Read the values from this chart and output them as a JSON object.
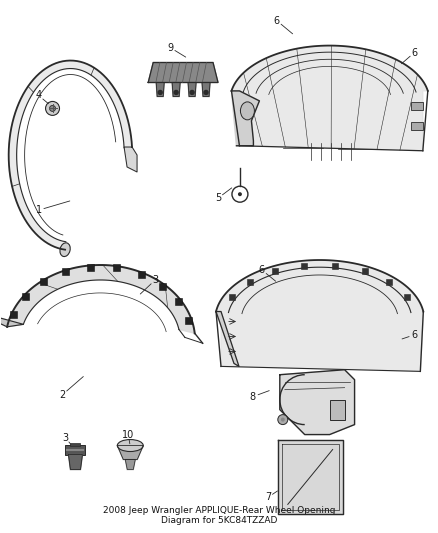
{
  "background_color": "#ffffff",
  "fig_width": 4.38,
  "fig_height": 5.33,
  "dpi": 100,
  "line_color": "#2a2a2a",
  "text_color": "#1a1a1a",
  "label_fontsize": 7.0,
  "title": "2008 Jeep Wrangler APPLIQUE-Rear Wheel Opening\nDiagram for 5KC84TZZAD",
  "title_fontsize": 6.5
}
